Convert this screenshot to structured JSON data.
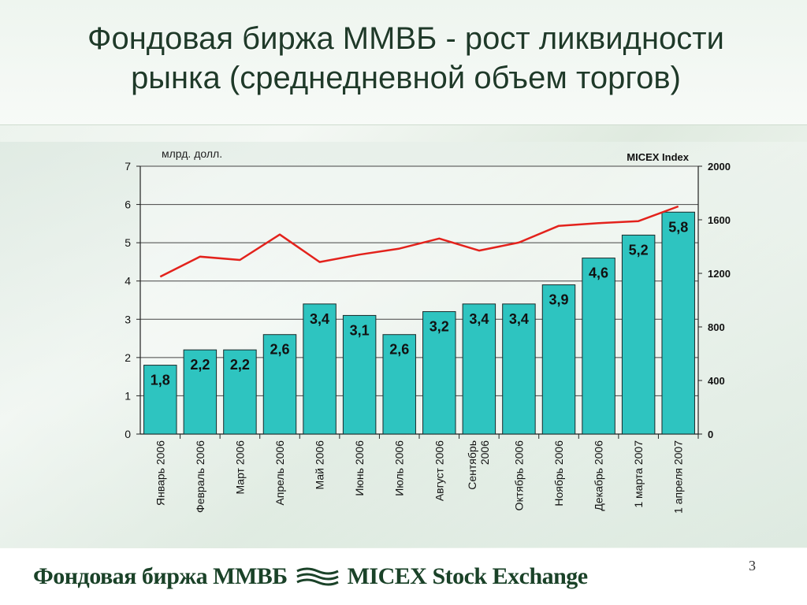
{
  "slide": {
    "title_line1": "Фондовая биржа ММВБ - рост ликвидности",
    "title_line2": "рынка (среднедневной объем торгов)",
    "page_number": "3"
  },
  "footer": {
    "brand_ru": "Фондовая биржа ММВБ",
    "brand_en": "MICEX Stock Exchange"
  },
  "colors": {
    "bar_fill": "#2ec4c0",
    "bar_stroke": "#1a2a2a",
    "line": "#e3221c",
    "title": "#1f3a29",
    "footer_text": "#1a4228"
  },
  "chart_data": {
    "type": "bar",
    "categories": [
      "Январь 2006",
      "Февраль 2006",
      "Март 2006",
      "Апрель 2006",
      "Май 2006",
      "Июнь 2006",
      "Июль 2006",
      "Август 2006",
      "Сентябрь 2006",
      "Октябрь 2006",
      "Ноябрь 2006",
      "Декабрь 2006",
      "1 марта 2007",
      "1 апреля 2007"
    ],
    "series": [
      {
        "type": "bar",
        "axis": "left",
        "values": [
          1.8,
          2.2,
          2.2,
          2.6,
          3.4,
          3.1,
          2.6,
          3.2,
          3.4,
          3.4,
          3.9,
          4.6,
          5.2,
          5.8
        ],
        "labels": [
          "1,8",
          "2,2",
          "2,2",
          "2,6",
          "3,4",
          "3,1",
          "2,6",
          "3,2",
          "3,4",
          "3,4",
          "3,9",
          "4,6",
          "5,2",
          "5,8"
        ]
      },
      {
        "name": "MICEX Index",
        "type": "line",
        "axis": "right",
        "values": [
          1175,
          1325,
          1300,
          1490,
          1285,
          1340,
          1385,
          1460,
          1370,
          1430,
          1555,
          1575,
          1590,
          1700
        ]
      }
    ],
    "ylabel_left": "млрд. долл.",
    "ylabel_right": "MICEX Index",
    "ylim_left": [
      0,
      7
    ],
    "ylim_right": [
      0,
      2000
    ],
    "yticks_left": [
      "0",
      "1",
      "2",
      "3",
      "4",
      "5",
      "6",
      "7"
    ],
    "yticks_right": [
      "0",
      "400",
      "800",
      "1200",
      "1600",
      "2000"
    ],
    "grid": true
  }
}
